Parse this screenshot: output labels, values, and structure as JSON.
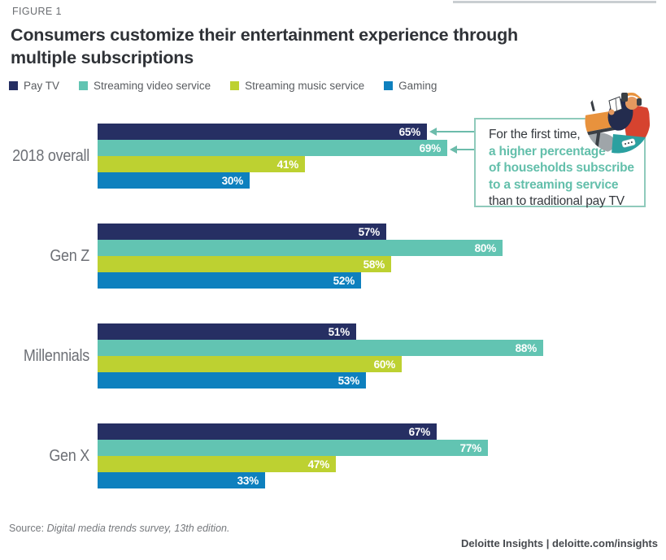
{
  "header": {
    "figure_label": "FIGURE 1",
    "title_line1": "Consumers customize their entertainment experience through",
    "title_line2": "multiple subscriptions"
  },
  "chart_data": {
    "type": "bar",
    "orientation": "horizontal",
    "title": "Consumers customize their entertainment experience through multiple subscriptions",
    "unit": "%",
    "xlim": [
      0,
      100
    ],
    "legend_position": "top",
    "grid": false,
    "categories": [
      "2018 overall",
      "Gen Z",
      "Millennials",
      "Gen X"
    ],
    "series": [
      {
        "name": "Pay TV",
        "color": "#262f63"
      },
      {
        "name": "Streaming video service",
        "color": "#62c4b2"
      },
      {
        "name": "Streaming music service",
        "color": "#bdd131"
      },
      {
        "name": "Gaming",
        "color": "#0e80be"
      }
    ],
    "values": [
      [
        65,
        69,
        41,
        30
      ],
      [
        57,
        80,
        58,
        52
      ],
      [
        51,
        88,
        60,
        53
      ],
      [
        67,
        77,
        47,
        33
      ]
    ]
  },
  "annotation": {
    "border_color": "#8fcabb",
    "arrow_color": "#6cbcab",
    "emphasis_color": "#63bfab",
    "lines": [
      {
        "text": "For the first time,",
        "emphasis": false
      },
      {
        "text": "a higher percentage",
        "emphasis": true
      },
      {
        "text": "of households subscribe",
        "emphasis": true
      },
      {
        "text": "to a streaming service",
        "emphasis": true
      },
      {
        "text": "than to traditional pay TV",
        "emphasis": false
      }
    ]
  },
  "icons": {
    "illustration": "person-with-headphones-watching-device-illustration"
  },
  "footer": {
    "source_prefix": "Source: ",
    "source_title": "Digital media trends survey, 13th edition.",
    "credit": "Deloitte Insights | deloitte.com/insights"
  }
}
